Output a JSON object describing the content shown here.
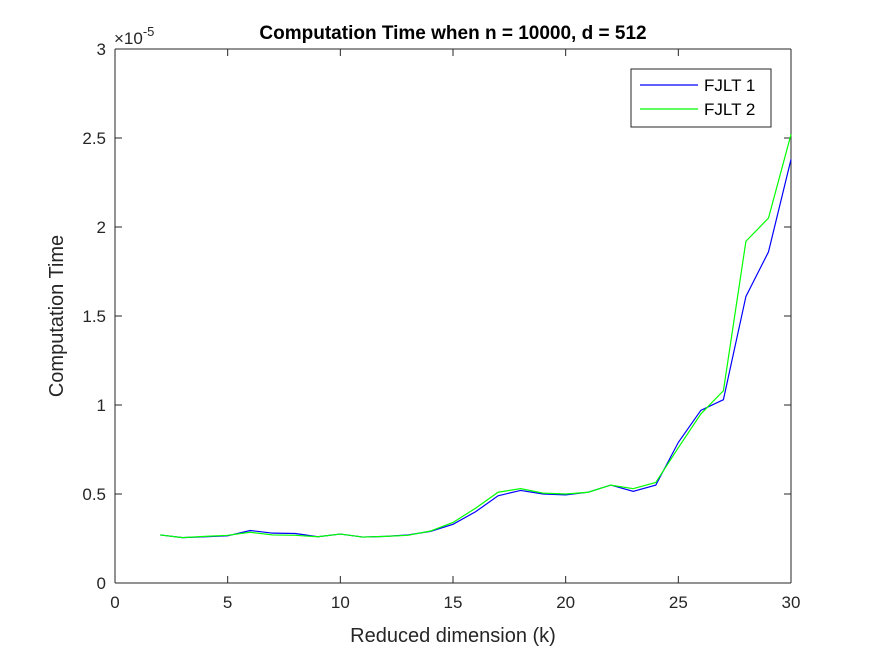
{
  "chart_data": {
    "type": "line",
    "title": "Computation Time when n = 10000, d = 512",
    "xlabel": "Reduced dimension (k)",
    "ylabel": "Computation Time",
    "xlim": [
      0,
      30
    ],
    "ylim": [
      0,
      3
    ],
    "x_ticks": [
      0,
      5,
      10,
      15,
      20,
      25,
      30
    ],
    "y_ticks": [
      0,
      0.5,
      1,
      1.5,
      2,
      2.5,
      3
    ],
    "x_tick_labels": [
      "0",
      "5",
      "10",
      "15",
      "20",
      "25",
      "30"
    ],
    "y_tick_labels": [
      "0",
      "0.5",
      "1",
      "1.5",
      "2",
      "2.5",
      "3"
    ],
    "y_multiplier_base": "×10",
    "y_multiplier_exponent": "-5",
    "grid": false,
    "legend_position": "top-right",
    "x": [
      2,
      3,
      4,
      5,
      6,
      7,
      8,
      9,
      10,
      11,
      12,
      13,
      14,
      15,
      16,
      17,
      18,
      19,
      20,
      21,
      22,
      23,
      24,
      25,
      26,
      27,
      28,
      29,
      30
    ],
    "series": [
      {
        "name": "FJLT 1",
        "color": "#0000ff",
        "values": [
          0.27,
          0.255,
          0.26,
          0.265,
          0.295,
          0.28,
          0.278,
          0.26,
          0.275,
          0.258,
          0.262,
          0.27,
          0.29,
          0.33,
          0.4,
          0.49,
          0.52,
          0.5,
          0.495,
          0.51,
          0.55,
          0.515,
          0.55,
          0.79,
          0.97,
          1.03,
          1.61,
          1.86,
          2.38
        ]
      },
      {
        "name": "FJLT 2",
        "color": "#00ff00",
        "values": [
          0.27,
          0.255,
          0.262,
          0.268,
          0.285,
          0.27,
          0.268,
          0.26,
          0.275,
          0.258,
          0.262,
          0.268,
          0.292,
          0.34,
          0.42,
          0.51,
          0.53,
          0.505,
          0.5,
          0.51,
          0.55,
          0.53,
          0.565,
          0.76,
          0.95,
          1.08,
          1.92,
          2.05,
          2.52
        ]
      }
    ]
  }
}
